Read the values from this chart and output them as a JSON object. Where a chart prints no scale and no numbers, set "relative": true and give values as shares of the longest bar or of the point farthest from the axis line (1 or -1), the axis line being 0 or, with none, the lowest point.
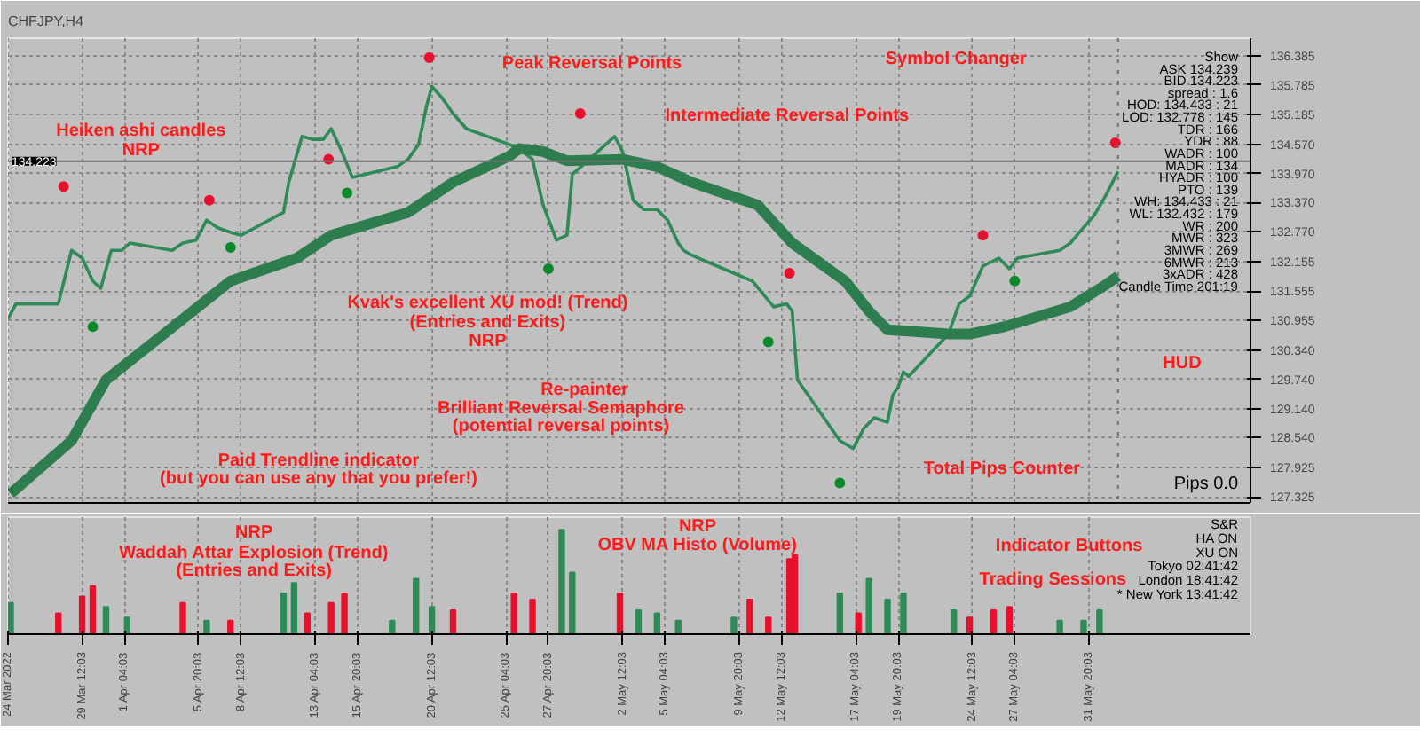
{
  "chart_data": [
    {
      "type": "line",
      "title": "CHFJPY,H4",
      "xlim": [
        "2022-03-24T20:00",
        "2022-06-11T00:00"
      ],
      "ylim": [
        127.2,
        136.75
      ],
      "yticks": [
        {
          "value": 136.385,
          "label": "136.385"
        },
        {
          "value": 135.785,
          "label": "135.785"
        },
        {
          "value": 135.185,
          "label": "135.185"
        },
        {
          "value": 134.57,
          "label": "134.570"
        },
        {
          "value": 133.97,
          "label": "133.970"
        },
        {
          "value": 133.37,
          "label": "133.370"
        },
        {
          "value": 132.77,
          "label": "132.770"
        },
        {
          "value": 132.155,
          "label": "132.155"
        },
        {
          "value": 131.555,
          "label": "131.555"
        },
        {
          "value": 130.955,
          "label": "130.955"
        },
        {
          "value": 130.34,
          "label": "130.340"
        },
        {
          "value": 129.74,
          "label": "129.740"
        },
        {
          "value": 129.14,
          "label": "129.140"
        },
        {
          "value": 128.54,
          "label": "128.540"
        },
        {
          "value": 127.925,
          "label": "127.925"
        },
        {
          "value": 127.325,
          "label": "127.325"
        }
      ],
      "xticks": [
        {
          "value": "2022-03-24T20:03",
          "label": null
        },
        {
          "value": "2022-03-29T12:03",
          "label": null
        },
        {
          "value": "2022-04-01T04:03",
          "label": null
        },
        {
          "value": "2022-04-05T20:03",
          "label": null
        },
        {
          "value": "2022-04-08T12:03",
          "label": null
        },
        {
          "value": "2022-04-13T04:03",
          "label": null
        },
        {
          "value": "2022-04-15T20:03",
          "label": null
        },
        {
          "value": "2022-04-20T12:03",
          "label": null
        },
        {
          "value": "2022-04-25T04:03",
          "label": null
        },
        {
          "value": "2022-04-27T20:03",
          "label": null
        },
        {
          "value": "2022-05-02T12:03",
          "label": null
        },
        {
          "value": "2022-05-05T04:03",
          "label": null
        },
        {
          "value": "2022-05-09T20:03",
          "label": null
        },
        {
          "value": "2022-05-12T12:03",
          "label": null
        },
        {
          "value": "2022-05-17T04:03",
          "label": null
        },
        {
          "value": "2022-05-19T20:03",
          "label": null
        },
        {
          "value": "2022-05-24T12:03",
          "label": null
        },
        {
          "value": "2022-05-27T04:03",
          "label": null
        },
        {
          "value": "2022-05-31T20:03",
          "label": null
        }
      ],
      "tick_labels": "y",
      "grid": true,
      "series": [
        {
          "type": "line",
          "color": "#2e8b57",
          "x": [
            "2022-03-24T20:00",
            "2022-03-25T08:00",
            "2022-03-28T00:00",
            "2022-03-28T20:00",
            "2022-03-29T12:00",
            "2022-03-30T04:00",
            "2022-03-30T16:00",
            "2022-03-31T08:00",
            "2022-04-01T00:00",
            "2022-04-01T12:00",
            "2022-04-04T04:00",
            "2022-04-04T20:00",
            "2022-04-05T16:00",
            "2022-04-06T08:00",
            "2022-04-07T00:00",
            "2022-04-07T20:00",
            "2022-04-08T12:00",
            "2022-04-11T04:00",
            "2022-04-11T12:00",
            "2022-04-12T08:00",
            "2022-04-13T00:00",
            "2022-04-13T16:00",
            "2022-04-14T04:00",
            "2022-04-14T20:00",
            "2022-04-15T12:00",
            "2022-04-18T08:00",
            "2022-04-19T00:00",
            "2022-04-19T16:00",
            "2022-04-20T04:00",
            "2022-04-20T12:00",
            "2022-04-21T04:00",
            "2022-04-21T20:00",
            "2022-04-22T16:00",
            "2022-04-25T08:00",
            "2022-04-26T00:00",
            "2022-04-26T20:00",
            "2022-04-27T12:00",
            "2022-04-28T08:00",
            "2022-04-29T00:00",
            "2022-04-29T08:00",
            "2022-05-02T00:00",
            "2022-05-02T12:00",
            "2022-05-03T04:00",
            "2022-05-03T20:00",
            "2022-05-04T16:00",
            "2022-05-05T08:00",
            "2022-05-06T00:00",
            "2022-05-06T08:00",
            "2022-05-06T20:00",
            "2022-05-09T12:00",
            "2022-05-10T16:00",
            "2022-05-12T00:00",
            "2022-05-12T20:00",
            "2022-05-13T04:00",
            "2022-05-13T12:00",
            "2022-05-16T04:00",
            "2022-05-17T00:00",
            "2022-05-17T16:00",
            "2022-05-18T08:00",
            "2022-05-19T04:00",
            "2022-05-19T12:00",
            "2022-05-19T20:00",
            "2022-05-20T04:00",
            "2022-05-20T12:00",
            "2022-05-23T00:00",
            "2022-05-23T16:00",
            "2022-05-24T08:00",
            "2022-05-25T04:00",
            "2022-05-26T04:00",
            "2022-05-26T20:00",
            "2022-05-27T08:00",
            "2022-05-30T00:00",
            "2022-05-30T16:00",
            "2022-05-31T12:00",
            "2022-06-01T04:00",
            "2022-06-01T20:00",
            "2022-06-02T16:00"
          ],
          "values": [
            130.98,
            131.29,
            131.29,
            132.39,
            132.23,
            131.76,
            131.61,
            132.39,
            132.39,
            132.54,
            132.39,
            132.54,
            132.6,
            133.01,
            132.86,
            132.76,
            132.7,
            133.17,
            133.79,
            134.73,
            134.67,
            134.67,
            134.89,
            134.42,
            133.89,
            134.11,
            134.26,
            134.57,
            135.36,
            135.76,
            135.51,
            135.2,
            134.89,
            134.57,
            134.48,
            134.26,
            133.32,
            132.6,
            132.7,
            133.95,
            134.73,
            134.42,
            133.42,
            133.23,
            133.23,
            133.01,
            132.54,
            132.39,
            132.29,
            131.92,
            131.76,
            131.23,
            131.29,
            131.14,
            129.73,
            128.48,
            128.32,
            128.73,
            128.95,
            128.86,
            129.42,
            129.58,
            129.89,
            129.8,
            130.67,
            131.29,
            131.45,
            132.07,
            132.23,
            132.01,
            132.23,
            132.39,
            132.54,
            132.86,
            133.11,
            133.48,
            134.01
          ]
        },
        {
          "type": "line",
          "color": "#2e7d4f",
          "x": [
            "2022-03-25T00:00",
            "2022-03-28T20:00",
            "2022-03-31T00:00",
            "2022-04-04T20:00",
            "2022-04-07T20:00",
            "2022-04-12T00:00",
            "2022-04-14T04:00",
            "2022-04-19T00:00",
            "2022-04-21T20:00",
            "2022-04-25T08:00",
            "2022-04-26T00:00",
            "2022-04-27T12:00",
            "2022-04-29T00:00",
            "2022-05-02T12:00",
            "2022-05-04T16:00",
            "2022-05-06T20:00",
            "2022-05-11T00:00",
            "2022-05-13T04:00",
            "2022-05-16T12:00",
            "2022-05-18T00:00",
            "2022-05-19T04:00",
            "2022-05-23T00:00",
            "2022-05-24T08:00",
            "2022-05-26T12:00",
            "2022-05-30T16:00",
            "2022-06-01T20:00",
            "2022-06-02T16:00"
          ],
          "values": [
            127.39,
            128.48,
            129.73,
            130.98,
            131.76,
            132.23,
            132.7,
            133.17,
            133.79,
            134.32,
            134.48,
            134.42,
            134.23,
            134.26,
            134.11,
            133.79,
            133.32,
            132.54,
            131.76,
            131.14,
            130.76,
            130.67,
            130.67,
            130.82,
            131.23,
            131.67,
            131.86
          ]
        },
        {
          "type": "scatter",
          "color": "#e8112d",
          "marker": "circle",
          "x": [
            "2022-03-28T08:00",
            "2022-04-06T12:00",
            "2022-04-14T00:00",
            "2022-04-20T08:00",
            "2022-04-29T20:00",
            "2022-05-13T00:00",
            "2022-05-25T04:00",
            "2022-06-02T12:00"
          ],
          "values": [
            133.7,
            133.42,
            134.26,
            136.35,
            135.2,
            131.92,
            132.7,
            134.6
          ]
        },
        {
          "type": "scatter",
          "color": "#0a8a2a",
          "marker": "circle",
          "x": [
            "2022-03-30T04:00",
            "2022-04-07T20:00",
            "2022-04-15T04:00",
            "2022-04-27T20:00",
            "2022-05-11T16:00",
            "2022-05-16T04:00",
            "2022-05-27T04:00"
          ],
          "values": [
            130.82,
            132.45,
            133.57,
            132.01,
            130.51,
            127.61,
            131.76
          ]
        }
      ],
      "ref_lines": [
        {
          "axis": "y",
          "value": 134.223,
          "label": "134.223"
        },
        {
          "axis": "x",
          "value": "2022-06-02T16:00",
          "line_style": "dotted"
        }
      ],
      "annotations": [
        "Peak Reversal Points",
        "Intermediate Reversal Points",
        "Heiken ashi candles",
        "NRP",
        "Kvak's excellent XU mod! (Trend)",
        "(Entries and Exits)",
        "NRP",
        "Re-painter",
        "Brilliant Reversal Semaphore",
        "(potential reversal points)",
        "Paid Trendline indicator",
        "(but you can use any that you prefer!)",
        "Symbol Changer",
        "HUD",
        "Total Pips Counter",
        "Show",
        "ASK 134.239",
        "BID 134.223",
        "spread : 1.6",
        "HOD: 134.433 : 21",
        "LOD: 132.778 : 145",
        "TDR : 166",
        "YDR : 88",
        "WADR : 100",
        "MADR : 134",
        "HYADR : 100",
        "PTO : 139",
        "WH: 134.433 : 21",
        "WL: 132.432 : 179",
        "WR : 200",
        "MWR : 323",
        "3MWR : 269",
        "6MWR : 213",
        "3xADR : 428",
        "Candle Time 201:19",
        "Pips 0.0"
      ]
    },
    {
      "type": "bar",
      "relative": true,
      "xlim": [
        "2022-03-24T20:00",
        "2022-06-11T00:00"
      ],
      "xticks": [
        {
          "value": "2022-03-24T20:03",
          "label": "24 Mar 2022"
        },
        {
          "value": "2022-03-29T12:03",
          "label": "29 Mar 12:03"
        },
        {
          "value": "2022-04-01T04:03",
          "label": "1 Apr 04:03"
        },
        {
          "value": "2022-04-05T20:03",
          "label": "5 Apr 20:03"
        },
        {
          "value": "2022-04-08T12:03",
          "label": "8 Apr 12:03"
        },
        {
          "value": "2022-04-13T04:03",
          "label": "13 Apr 04:03"
        },
        {
          "value": "2022-04-15T20:03",
          "label": "15 Apr 20:03"
        },
        {
          "value": "2022-04-20T12:03",
          "label": "20 Apr 12:03"
        },
        {
          "value": "2022-04-25T04:03",
          "label": "25 Apr 04:03"
        },
        {
          "value": "2022-04-27T20:03",
          "label": "27 Apr 20:03"
        },
        {
          "value": "2022-05-02T12:03",
          "label": "2 May 12:03"
        },
        {
          "value": "2022-05-05T04:03",
          "label": "5 May 04:03"
        },
        {
          "value": "2022-05-09T20:03",
          "label": "9 May 20:03"
        },
        {
          "value": "2022-05-12T12:03",
          "label": "12 May 12:03"
        },
        {
          "value": "2022-05-17T04:03",
          "label": "17 May 04:03"
        },
        {
          "value": "2022-05-19T20:03",
          "label": "19 May 20:03"
        },
        {
          "value": "2022-05-24T12:03",
          "label": "24 May 12:03"
        },
        {
          "value": "2022-05-27T04:03",
          "label": "27 May 04:03"
        },
        {
          "value": "2022-05-31T20:03",
          "label": "31 May 20:03"
        }
      ],
      "tick_labels": "x",
      "grid": true,
      "x": [
        "2022-03-25T00:00",
        "2022-03-28T00:00",
        "2022-03-29T12:00",
        "2022-03-30T04:00",
        "2022-03-31T00:00",
        "2022-04-01T08:00",
        "2022-04-04T20:00",
        "2022-04-06T08:00",
        "2022-04-07T20:00",
        "2022-04-11T04:00",
        "2022-04-11T20:00",
        "2022-04-12T16:00",
        "2022-04-14T04:00",
        "2022-04-15T00:00",
        "2022-04-18T00:00",
        "2022-04-19T12:00",
        "2022-04-20T12:00",
        "2022-04-21T20:00",
        "2022-04-25T16:00",
        "2022-04-26T20:00",
        "2022-04-28T16:00",
        "2022-04-29T08:00",
        "2022-05-02T08:00",
        "2022-05-03T12:00",
        "2022-05-04T16:00",
        "2022-05-06T00:00",
        "2022-05-09T12:00",
        "2022-05-10T12:00",
        "2022-05-11T16:00",
        "2022-05-13T00:00",
        "2022-05-13T08:00",
        "2022-05-16T04:00",
        "2022-05-17T08:00",
        "2022-05-18T00:00",
        "2022-05-19T04:00",
        "2022-05-20T04:00",
        "2022-05-23T08:00",
        "2022-05-24T08:00",
        "2022-05-25T20:00",
        "2022-05-26T20:00",
        "2022-05-30T00:00",
        "2022-05-31T12:00",
        "2022-06-01T12:00"
      ],
      "values": [
        0.3,
        0.2,
        0.36,
        0.46,
        0.26,
        0.16,
        0.3,
        0.13,
        0.13,
        0.39,
        0.49,
        0.2,
        0.3,
        0.39,
        0.13,
        0.53,
        0.26,
        0.23,
        0.39,
        0.33,
        1.0,
        0.59,
        0.39,
        0.23,
        0.2,
        0.13,
        0.16,
        0.33,
        0.16,
        0.72,
        0.76,
        0.39,
        0.2,
        0.53,
        0.33,
        0.39,
        0.23,
        0.16,
        0.23,
        0.26,
        0.13,
        0.13,
        0.23
      ],
      "colors": [
        "#2e8b57",
        "#e8112d",
        "#e8112d",
        "#e8112d",
        "#2e8b57",
        "#2e8b57",
        "#e8112d",
        "#2e8b57",
        "#e8112d",
        "#2e8b57",
        "#2e8b57",
        "#e8112d",
        "#e8112d",
        "#e8112d",
        "#2e8b57",
        "#2e8b57",
        "#2e8b57",
        "#e8112d",
        "#e8112d",
        "#e8112d",
        "#2e8b57",
        "#2e8b57",
        "#e8112d",
        "#2e8b57",
        "#2e8b57",
        "#2e8b57",
        "#2e8b57",
        "#e8112d",
        "#e8112d",
        "#e8112d",
        "#e8112d",
        "#2e8b57",
        "#e8112d",
        "#2e8b57",
        "#2e8b57",
        "#2e8b57",
        "#2e8b57",
        "#e8112d",
        "#e8112d",
        "#e8112d",
        "#2e8b57",
        "#2e8b57",
        "#2e8b57"
      ],
      "annotations": [
        "NRP",
        "Waddah Attar Explosion (Trend)",
        "(Entries and Exits)",
        "NRP",
        "OBV MA Histo (Volume)",
        "Indicator Buttons",
        "Trading Sessions",
        "S&R",
        "HA ON",
        "XU ON",
        "Tokyo 02:41:42",
        "London 18:41:42",
        "* New York 13:41:42"
      ]
    }
  ]
}
